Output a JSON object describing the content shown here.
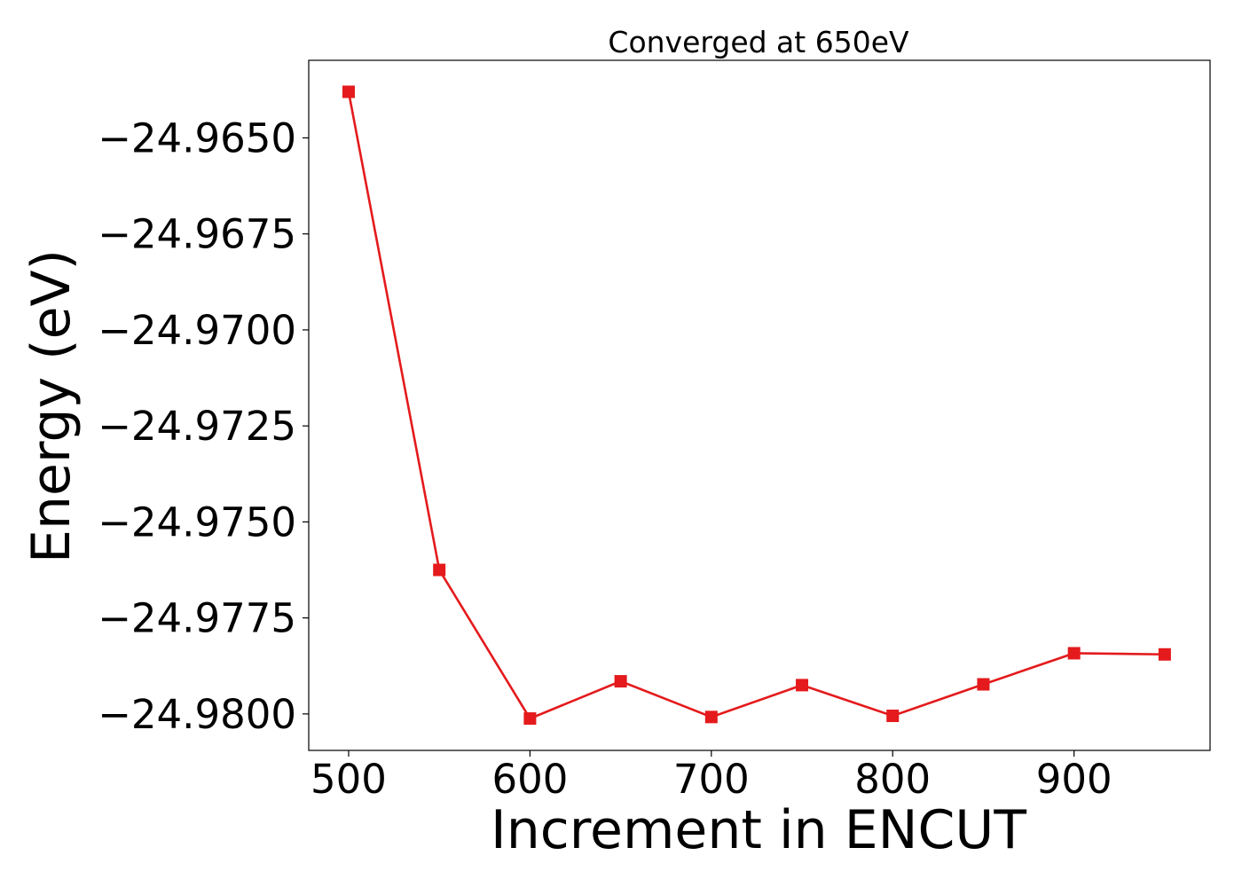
{
  "chart_data": {
    "type": "line",
    "title": "Converged at 650eV",
    "xlabel": "Increment in ENCUT",
    "ylabel": "Energy (eV)",
    "x": [
      500,
      550,
      600,
      650,
      700,
      750,
      800,
      850,
      900,
      950
    ],
    "series": [
      {
        "values": [
          -24.9638,
          -24.97625,
          -24.98012,
          -24.97915,
          -24.98008,
          -24.97925,
          -24.98005,
          -24.97923,
          -24.97842,
          -24.97845
        ],
        "color": "#e41a1c",
        "marker": "square"
      }
    ],
    "xlim": [
      478,
      975
    ],
    "ylim": [
      -24.98095,
      -24.96298
    ],
    "xticks": [
      500,
      600,
      700,
      800,
      900
    ],
    "xtick_labels": [
      "500",
      "600",
      "700",
      "800",
      "900"
    ],
    "yticks": [
      -24.965,
      -24.9675,
      -24.97,
      -24.9725,
      -24.975,
      -24.9775,
      -24.98
    ],
    "ytick_labels": [
      "−24.9650",
      "−24.9675",
      "−24.9700",
      "−24.9725",
      "−24.9750",
      "−24.9775",
      "−24.9800"
    ],
    "grid": false,
    "legend": "none"
  }
}
